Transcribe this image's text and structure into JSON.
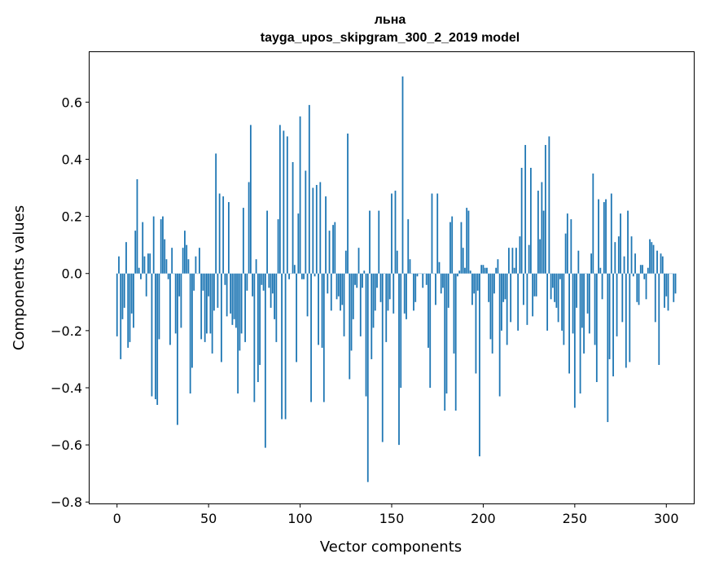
{
  "chart_data": {
    "type": "bar",
    "title": "льна",
    "subtitle": "tayga_upos_skipgram_300_2_2019 model",
    "xlabel": "Vector components",
    "ylabel": "Components values",
    "xlim": [
      -15,
      315
    ],
    "ylim": [
      -0.805,
      0.775
    ],
    "xticks": [
      0,
      50,
      100,
      150,
      200,
      250,
      300
    ],
    "yticks": [
      -0.8,
      -0.6,
      -0.4,
      -0.2,
      0.0,
      0.2,
      0.4,
      0.6
    ],
    "ytick_labels": [
      "−0.8",
      "−0.6",
      "−0.4",
      "−0.2",
      "0.0",
      "0.2",
      "0.4",
      "0.6"
    ],
    "xtick_labels": [
      "0",
      "50",
      "100",
      "150",
      "200",
      "250",
      "300"
    ],
    "bar_color": "#1f77b4",
    "values": [
      -0.22,
      0.06,
      -0.3,
      -0.16,
      -0.12,
      0.11,
      -0.26,
      -0.24,
      -0.14,
      -0.19,
      0.15,
      0.33,
      0.02,
      -0.02,
      0.18,
      0.06,
      -0.08,
      0.07,
      0.07,
      -0.43,
      0.2,
      -0.44,
      -0.46,
      -0.23,
      0.19,
      0.2,
      0.12,
      0.05,
      -0.02,
      -0.25,
      0.09,
      0.0,
      -0.21,
      -0.53,
      -0.08,
      -0.19,
      0.09,
      0.15,
      0.1,
      0.05,
      -0.42,
      -0.33,
      -0.06,
      0.06,
      0.0,
      0.09,
      -0.23,
      -0.06,
      -0.24,
      -0.21,
      -0.08,
      -0.21,
      -0.28,
      -0.13,
      0.42,
      -0.12,
      0.28,
      -0.31,
      0.27,
      -0.04,
      -0.15,
      0.25,
      -0.14,
      -0.18,
      -0.16,
      -0.19,
      -0.42,
      -0.27,
      -0.21,
      0.23,
      -0.24,
      -0.06,
      0.32,
      0.52,
      -0.08,
      -0.45,
      0.05,
      -0.38,
      -0.32,
      -0.04,
      -0.06,
      -0.61,
      0.22,
      -0.05,
      -0.12,
      -0.07,
      -0.16,
      -0.24,
      0.19,
      0.52,
      -0.51,
      0.5,
      -0.51,
      0.48,
      -0.02,
      0.0,
      0.39,
      0.03,
      -0.31,
      0.21,
      0.55,
      -0.02,
      -0.02,
      0.36,
      -0.15,
      0.59,
      -0.45,
      0.3,
      -0.01,
      0.31,
      -0.25,
      0.32,
      -0.26,
      -0.45,
      0.27,
      -0.07,
      0.15,
      -0.13,
      0.17,
      0.18,
      -0.09,
      -0.08,
      -0.13,
      -0.11,
      -0.22,
      0.08,
      0.49,
      -0.37,
      -0.27,
      -0.16,
      -0.04,
      -0.05,
      0.09,
      -0.22,
      -0.05,
      0.01,
      -0.43,
      -0.73,
      0.22,
      -0.3,
      -0.19,
      -0.13,
      -0.05,
      0.22,
      -0.1,
      -0.59,
      0.0,
      -0.24,
      -0.13,
      -0.09,
      0.28,
      -0.14,
      0.29,
      0.08,
      -0.6,
      -0.4,
      0.69,
      -0.14,
      -0.16,
      0.19,
      0.05,
      0.0,
      -0.13,
      -0.1,
      -0.01,
      0.0,
      0.0,
      -0.05,
      0.0,
      -0.04,
      -0.26,
      -0.4,
      0.28,
      0.0,
      -0.11,
      0.28,
      0.04,
      -0.07,
      -0.05,
      -0.48,
      -0.42,
      -0.12,
      0.18,
      0.2,
      -0.28,
      -0.48,
      -0.01,
      0.01,
      0.18,
      0.09,
      0.02,
      0.23,
      0.22,
      0.01,
      -0.11,
      -0.07,
      -0.35,
      -0.06,
      -0.64,
      0.03,
      0.03,
      0.02,
      0.02,
      -0.1,
      -0.23,
      -0.28,
      -0.07,
      0.02,
      0.05,
      -0.43,
      -0.2,
      -0.1,
      -0.09,
      -0.25,
      0.09,
      -0.17,
      0.09,
      0.02,
      0.09,
      -0.2,
      0.13,
      0.37,
      -0.11,
      0.45,
      -0.18,
      0.1,
      0.37,
      -0.15,
      -0.08,
      -0.08,
      0.29,
      0.12,
      0.32,
      0.22,
      0.45,
      -0.2,
      0.48,
      -0.09,
      -0.05,
      -0.1,
      -0.12,
      -0.17,
      -0.02,
      -0.2,
      -0.25,
      0.14,
      0.21,
      -0.35,
      0.19,
      -0.21,
      -0.47,
      -0.12,
      0.08,
      -0.42,
      -0.19,
      -0.28,
      0.0,
      -0.14,
      -0.21,
      0.07,
      0.35,
      -0.25,
      -0.38,
      0.26,
      0.02,
      -0.09,
      0.25,
      0.26,
      -0.52,
      -0.3,
      0.28,
      -0.36,
      0.11,
      -0.22,
      0.13,
      0.21,
      -0.17,
      0.06,
      -0.33,
      0.22,
      -0.31,
      0.13,
      -0.01,
      0.07,
      -0.1,
      -0.11,
      0.03,
      0.03,
      -0.02,
      -0.09,
      0.02,
      0.12,
      0.11,
      0.1,
      -0.17,
      0.08,
      -0.32,
      0.07,
      0.06,
      -0.12,
      -0.08,
      -0.13,
      0.0,
      0.0,
      -0.1,
      -0.07
    ]
  }
}
